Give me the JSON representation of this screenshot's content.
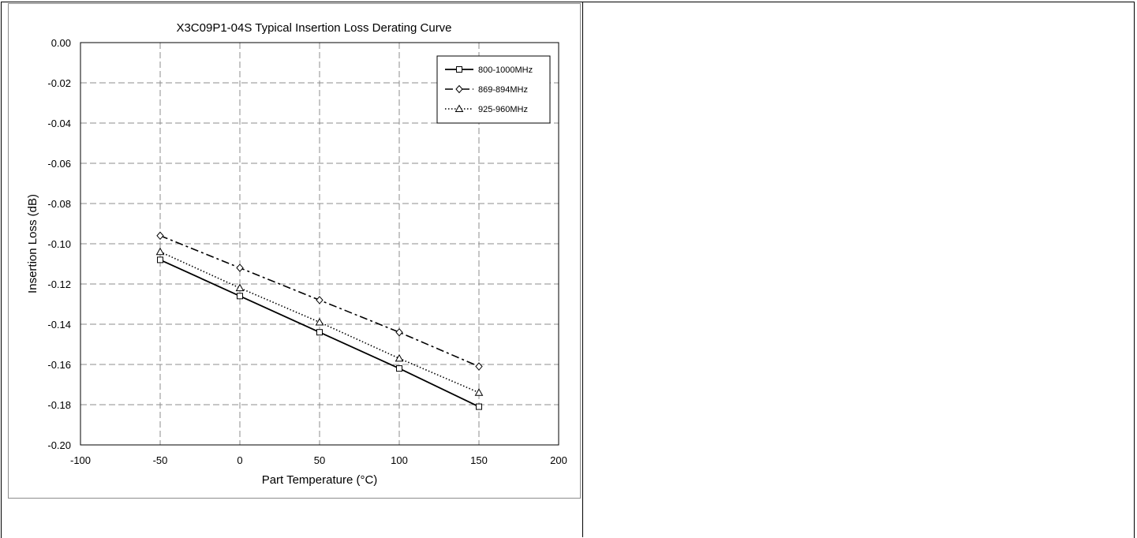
{
  "chart_data": {
    "type": "line",
    "title": "X3C09P1-04S Typical Insertion  Loss Derating Curve",
    "xlabel": "Part Temperature  (°C)",
    "ylabel": "Insertion  Loss (dB)",
    "xlim": [
      -100,
      200
    ],
    "ylim": [
      -0.2,
      0.0
    ],
    "xticks": [
      -100,
      -50,
      0,
      50,
      100,
      150,
      200
    ],
    "xtick_labels": [
      "-100",
      "-50",
      "0",
      "50",
      "100",
      "150",
      "200"
    ],
    "yticks": [
      0.0,
      -0.02,
      -0.04,
      -0.06,
      -0.08,
      -0.1,
      -0.12,
      -0.14,
      -0.16,
      -0.18,
      -0.2
    ],
    "ytick_labels": [
      "0.00",
      "-0.02",
      "-0.04",
      "-0.06",
      "-0.08",
      "-0.10",
      "-0.12",
      "-0.14",
      "-0.16",
      "-0.18",
      "-0.20"
    ],
    "grid": true,
    "legend_position": "top-right",
    "x": [
      -50,
      0,
      50,
      100,
      150
    ],
    "series": [
      {
        "name": "800-1000MHz",
        "values": [
          -0.108,
          -0.126,
          -0.144,
          -0.162,
          -0.181
        ],
        "marker": "square",
        "line_style": "solid",
        "color": "#000000"
      },
      {
        "name": "869-894MHz",
        "values": [
          -0.096,
          -0.112,
          -0.128,
          -0.144,
          -0.161
        ],
        "marker": "diamond",
        "line_style": "dashdot",
        "color": "#000000"
      },
      {
        "name": "925-960MHz",
        "values": [
          -0.104,
          -0.122,
          -0.139,
          -0.157,
          -0.174
        ],
        "marker": "triangle",
        "line_style": "dotted",
        "color": "#000000"
      }
    ]
  }
}
